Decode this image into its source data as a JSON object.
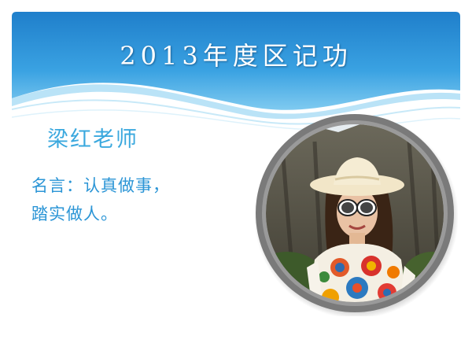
{
  "slide": {
    "title": "2013年度区记功",
    "name": "梁红老师",
    "motto_line1": "名言：认真做事，",
    "motto_line2": "踏实做人。"
  },
  "colors": {
    "header_blue": "#2a8fd3",
    "header_light": "#6ec4f0",
    "text_blue": "#2b95d6",
    "frame_gray": "#7a7a7a"
  },
  "icons": {
    "portrait": "portrait-photo"
  }
}
